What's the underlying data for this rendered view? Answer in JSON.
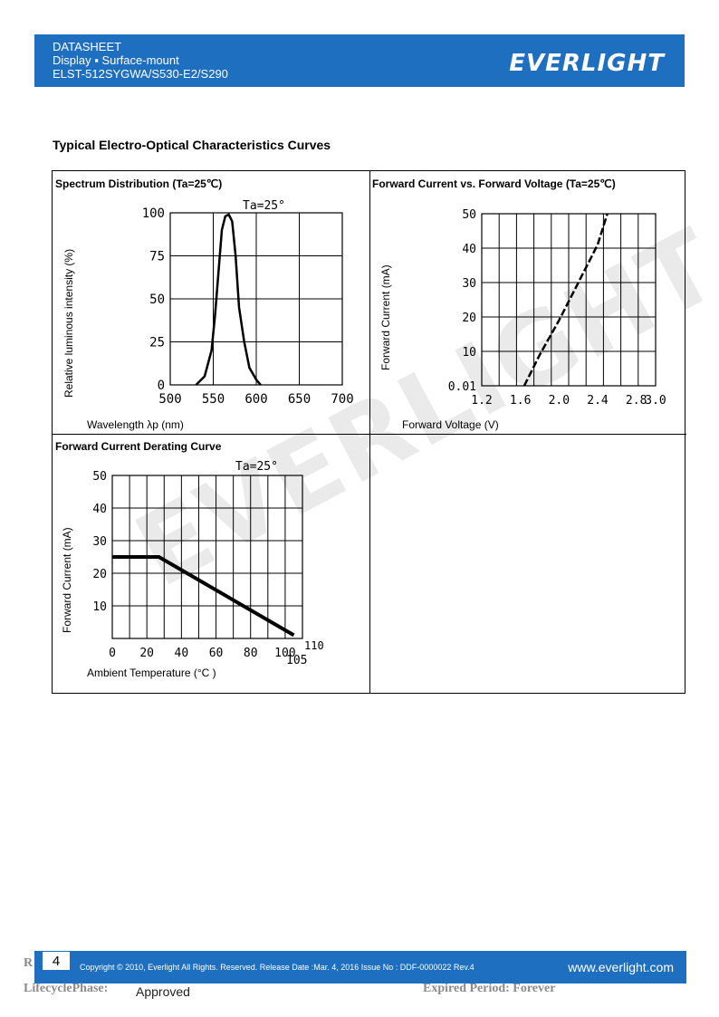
{
  "header": {
    "line1": "DATASHEET",
    "line2": "Display ▪ Surface-mount",
    "line3": "ELST-512SYGWA/S530-E2/S290",
    "logo": "EVERLIGHT"
  },
  "section_title": "Typical Electro-Optical Characteristics Curves",
  "watermark": "EVERLIGHT",
  "charts": {
    "spectrum": {
      "title": "Spectrum Distribution (Ta=25℃)",
      "annotation": "Ta=25°",
      "ylabel": "Relative luminous intensity (%)",
      "xlabel": "Wavelength λp (nm)",
      "yticks": [
        "100",
        "75",
        "50",
        "25",
        "0"
      ],
      "xticks": [
        "500",
        "550",
        "600",
        "650",
        "700"
      ]
    },
    "forward": {
      "title": "Forward Current vs. Forward Voltage (Ta=25℃)",
      "ylabel": "Forward Current (mA)",
      "xlabel": "Forward Voltage (V)",
      "yticks": [
        "50",
        "40",
        "30",
        "20",
        "10",
        "0.01"
      ],
      "xticks": [
        "1.2",
        "1.6",
        "2.0",
        "2.4",
        "2.8",
        "3.0"
      ]
    },
    "derating": {
      "title": "Forward Current Derating Curve",
      "annotation": "Ta=25°",
      "ylabel": "Forward Current (mA)",
      "xlabel": "Ambient Temperature (°C )",
      "yticks": [
        "50",
        "40",
        "30",
        "20",
        "10"
      ],
      "xticks": [
        "0",
        "20",
        "40",
        "60",
        "80",
        "100"
      ],
      "extra_ticks": [
        "110",
        "105"
      ]
    }
  },
  "chart_data": [
    {
      "type": "line",
      "title": "Spectrum Distribution (Ta=25℃)",
      "xlabel": "Wavelength λp (nm)",
      "ylabel": "Relative luminous intensity (%)",
      "xlim": [
        500,
        700
      ],
      "ylim": [
        0,
        100
      ],
      "grid": true,
      "x": [
        530,
        540,
        548,
        552,
        556,
        560,
        564,
        568,
        572,
        576,
        580,
        586,
        592,
        600,
        605
      ],
      "y": [
        0,
        5,
        20,
        40,
        65,
        90,
        98,
        99,
        95,
        75,
        45,
        25,
        10,
        3,
        0
      ]
    },
    {
      "type": "line",
      "title": "Forward Current vs. Forward Voltage (Ta=25℃)",
      "xlabel": "Forward Voltage (V)",
      "ylabel": "Forward Current (mA)",
      "xlim": [
        1.2,
        3.0
      ],
      "ylim": [
        0,
        50
      ],
      "grid": true,
      "x": [
        1.64,
        1.8,
        2.0,
        2.2,
        2.4,
        2.5
      ],
      "y": [
        0,
        9,
        19,
        30,
        41,
        50
      ]
    },
    {
      "type": "line",
      "title": "Forward Current Derating Curve",
      "xlabel": "Ambient Temperature (°C )",
      "ylabel": "Forward Current (mA)",
      "xlim": [
        0,
        110
      ],
      "ylim": [
        0,
        50
      ],
      "grid": true,
      "x": [
        0,
        27,
        105
      ],
      "y": [
        25,
        25,
        1
      ]
    }
  ],
  "footer": {
    "page": "4",
    "copyright": "Copyright © 2010, Everlight All Rights. Reserved. Release Date :Mar. 4, 2016 Issue No : DDF-0000022 Rev.4",
    "website": "www.everlight.com",
    "rmark": "R",
    "lifecycle": "LifecyclePhase:",
    "approved": "Approved",
    "expired": "Expired Period: Forever"
  }
}
